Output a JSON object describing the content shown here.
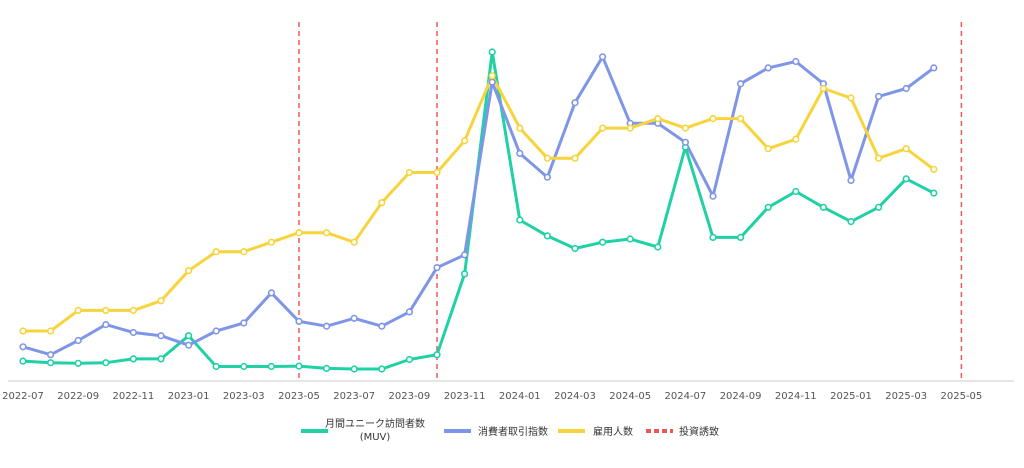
{
  "chart_data": {
    "type": "line",
    "x": [
      "2022-07",
      "2022-08",
      "2022-09",
      "2022-10",
      "2022-11",
      "2022-12",
      "2023-01",
      "2023-02",
      "2023-03",
      "2023-04",
      "2023-05",
      "2023-06",
      "2023-07",
      "2023-08",
      "2023-09",
      "2023-10",
      "2023-11",
      "2023-12",
      "2024-01",
      "2024-02",
      "2024-03",
      "2024-04",
      "2024-05",
      "2024-06",
      "2024-07",
      "2024-08",
      "2024-09",
      "2024-10",
      "2024-11",
      "2024-12",
      "2025-01",
      "2025-02",
      "2025-03",
      "2025-04"
    ],
    "x_ticks": [
      "2022-07",
      "2022-09",
      "2022-11",
      "2023-01",
      "2023-03",
      "2023-05",
      "2023-07",
      "2023-09",
      "2023-11",
      "2024-01",
      "2024-03",
      "2024-05",
      "2024-07",
      "2024-09",
      "2024-11",
      "2025-01",
      "2025-03",
      "2025-05"
    ],
    "ylim": [
      0,
      100
    ],
    "grid": false,
    "legend_position": "bottom",
    "series": [
      {
        "name": "月間ユニーク訪問者数\n(MUV)",
        "color": "#1fd1a5",
        "values": [
          2.5,
          2.0,
          1.8,
          2.0,
          3.2,
          3.2,
          10.5,
          0.8,
          0.8,
          0.8,
          0.9,
          0.2,
          0.0,
          0.0,
          3.0,
          4.5,
          30.0,
          100.0,
          47.0,
          42.0,
          38.0,
          40.0,
          41.0,
          38.5,
          70.0,
          41.5,
          41.5,
          51.0,
          56.0,
          51.0,
          46.5,
          51.0,
          60.0,
          55.5
        ]
      },
      {
        "name": "消費者取引指数",
        "color": "#7f95e8",
        "values": [
          7.0,
          4.5,
          9.0,
          14.0,
          11.5,
          10.5,
          7.5,
          12.0,
          14.5,
          24.0,
          15.0,
          13.5,
          16.0,
          13.5,
          18.0,
          32.0,
          36.0,
          90.5,
          68.0,
          60.5,
          84.0,
          98.5,
          77.5,
          77.5,
          71.5,
          54.5,
          90.0,
          95.0,
          97.0,
          90.0,
          59.5,
          86.0,
          88.5,
          95.0
        ]
      },
      {
        "name": "雇用人数",
        "color": "#f7d43c",
        "values": [
          12.0,
          12.0,
          18.5,
          18.5,
          18.5,
          21.5,
          31.0,
          37.0,
          37.0,
          40.0,
          43.0,
          43.0,
          40.0,
          52.5,
          62.0,
          62.0,
          72.0,
          92.5,
          76.0,
          66.5,
          66.5,
          76.0,
          76.0,
          79.0,
          76.0,
          79.0,
          79.0,
          69.5,
          72.5,
          88.5,
          85.5,
          66.5,
          69.5,
          63.0
        ]
      }
    ],
    "reference_lines": {
      "name": "投資誘致",
      "color": "#e85a5a",
      "x": [
        "2023-05",
        "2023-10",
        "2025-05"
      ]
    }
  }
}
